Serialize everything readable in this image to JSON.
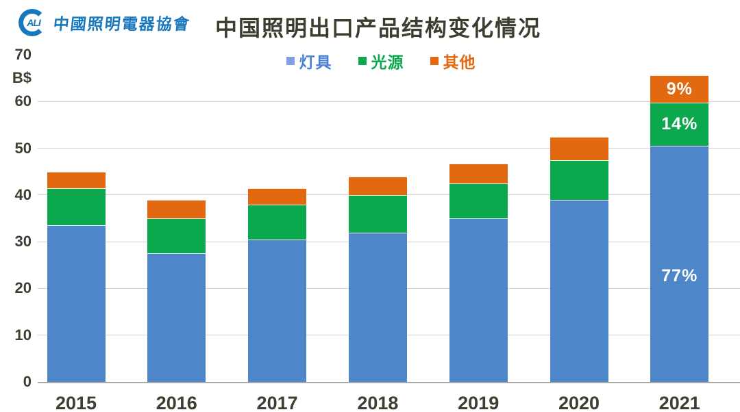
{
  "header": {
    "logo": {
      "circle_text": "ALI",
      "org_name": "中國照明電器協會"
    },
    "title": "中国照明出口产品结构变化情况"
  },
  "legend": {
    "items": [
      {
        "label": "灯具",
        "marker_color": "#7f9fe0",
        "text_color": "#4a80d8"
      },
      {
        "label": "光源",
        "marker_color": "#0ba84e",
        "text_color": "#0ba84e"
      },
      {
        "label": "其他",
        "marker_color": "#e2690f",
        "text_color": "#e2690f"
      }
    ]
  },
  "chart_data": {
    "type": "bar",
    "stacked": true,
    "title": "中国照明出口产品结构变化情况",
    "unit_label": "B$",
    "categories": [
      "2015",
      "2016",
      "2017",
      "2018",
      "2019",
      "2020",
      "2021"
    ],
    "series": [
      {
        "name": "灯具",
        "color": "#4d86c9",
        "values": [
          33.5,
          27.5,
          30.5,
          32.0,
          35.0,
          39.0,
          50.6
        ]
      },
      {
        "name": "光源",
        "color": "#0ba84e",
        "values": [
          8.0,
          7.5,
          7.5,
          8.0,
          7.5,
          8.5,
          9.2
        ]
      },
      {
        "name": "其他",
        "color": "#e2690f",
        "values": [
          3.5,
          4.0,
          3.5,
          4.0,
          4.3,
          5.0,
          5.9
        ]
      }
    ],
    "annotations": [
      {
        "category": "2021",
        "series": "其他",
        "text": "9%"
      },
      {
        "category": "2021",
        "series": "光源",
        "text": "14%"
      },
      {
        "category": "2021",
        "series": "灯具",
        "text": "77%"
      }
    ],
    "y_axis": {
      "min": 0,
      "max": 70,
      "tick_step": 10,
      "ticks": [
        70,
        60,
        50,
        40,
        30,
        20,
        10,
        0
      ],
      "unit": "B$"
    },
    "gridlines": [
      10,
      20,
      30,
      40,
      50,
      60
    ],
    "legend_position": "top-center",
    "grid": true
  },
  "colors": {
    "logo_blue": "#1878be"
  }
}
